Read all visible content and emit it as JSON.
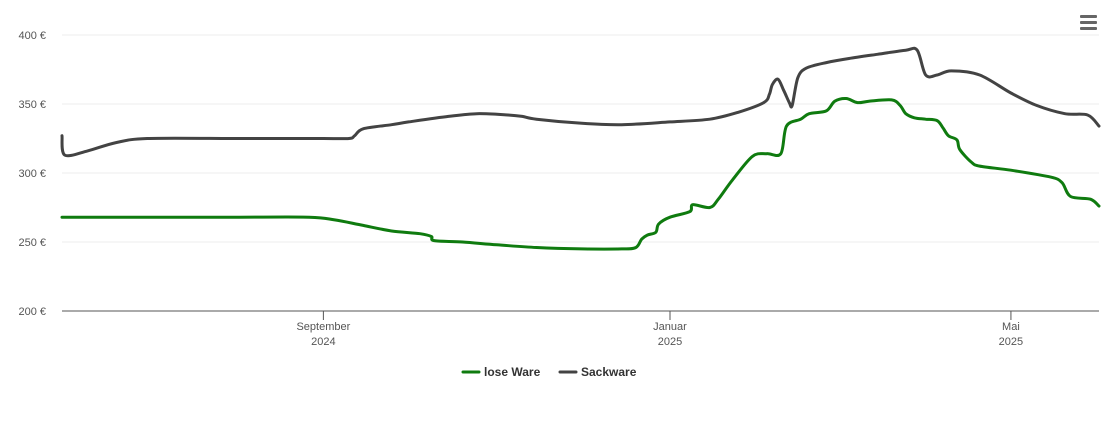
{
  "ui": {
    "menu_icon": "hamburger-menu-icon"
  },
  "chart_data": {
    "type": "line",
    "title": "",
    "xlabel": "",
    "ylabel": "",
    "ylim": [
      200,
      400
    ],
    "xlim": [
      "2024-06-01",
      "2025-06-01"
    ],
    "grid": true,
    "legend": "bottom-center",
    "y_ticks": [
      {
        "value": 200,
        "label": "200 €"
      },
      {
        "value": 250,
        "label": "250 €"
      },
      {
        "value": 300,
        "label": "300 €"
      },
      {
        "value": 350,
        "label": "350 €"
      },
      {
        "value": 400,
        "label": "400 €"
      }
    ],
    "x_ticks": [
      {
        "date": "2024-09-01",
        "label": "September",
        "sublabel": "2024"
      },
      {
        "date": "2025-01-01",
        "label": "Januar",
        "sublabel": "2025"
      },
      {
        "date": "2025-05-01",
        "label": "Mai",
        "sublabel": "2025"
      }
    ],
    "series": [
      {
        "name": "lose Ware",
        "color": "#0f7b0f",
        "points": [
          [
            "2024-06-01",
            268
          ],
          [
            "2024-07-01",
            268
          ],
          [
            "2024-08-01",
            268
          ],
          [
            "2024-08-27",
            268
          ],
          [
            "2024-09-05",
            266
          ],
          [
            "2024-09-15",
            262
          ],
          [
            "2024-09-25",
            258
          ],
          [
            "2024-10-05",
            256
          ],
          [
            "2024-10-09",
            254
          ],
          [
            "2024-10-10",
            251
          ],
          [
            "2024-10-20",
            250
          ],
          [
            "2024-11-01",
            248
          ],
          [
            "2024-11-15",
            246
          ],
          [
            "2024-12-01",
            245
          ],
          [
            "2024-12-15",
            245
          ],
          [
            "2024-12-20",
            246
          ],
          [
            "2024-12-22",
            252
          ],
          [
            "2024-12-24",
            255
          ],
          [
            "2024-12-27",
            257
          ],
          [
            "2024-12-28",
            263
          ],
          [
            "2025-01-01",
            268
          ],
          [
            "2025-01-08",
            272
          ],
          [
            "2025-01-09",
            277
          ],
          [
            "2025-01-15",
            275
          ],
          [
            "2025-01-18",
            281
          ],
          [
            "2025-01-23",
            295
          ],
          [
            "2025-01-30",
            312
          ],
          [
            "2025-02-04",
            314
          ],
          [
            "2025-02-09",
            314
          ],
          [
            "2025-02-11",
            334
          ],
          [
            "2025-02-16",
            339
          ],
          [
            "2025-02-19",
            343
          ],
          [
            "2025-02-25",
            345
          ],
          [
            "2025-02-28",
            352
          ],
          [
            "2025-03-04",
            354
          ],
          [
            "2025-03-08",
            351
          ],
          [
            "2025-03-12",
            352
          ],
          [
            "2025-03-20",
            353
          ],
          [
            "2025-03-23",
            349
          ],
          [
            "2025-03-25",
            343
          ],
          [
            "2025-03-28",
            340
          ],
          [
            "2025-04-01",
            339
          ],
          [
            "2025-04-05",
            338
          ],
          [
            "2025-04-07",
            333
          ],
          [
            "2025-04-09",
            327
          ],
          [
            "2025-04-12",
            324
          ],
          [
            "2025-04-13",
            317
          ],
          [
            "2025-04-17",
            308
          ],
          [
            "2025-04-20",
            305
          ],
          [
            "2025-05-01",
            302
          ],
          [
            "2025-05-15",
            297
          ],
          [
            "2025-05-19",
            293
          ],
          [
            "2025-05-22",
            283
          ],
          [
            "2025-05-29",
            281
          ],
          [
            "2025-06-01",
            276
          ]
        ]
      },
      {
        "name": "Sackware",
        "color": "#434343",
        "points": [
          [
            "2024-06-01",
            327
          ],
          [
            "2024-06-02",
            313
          ],
          [
            "2024-06-10",
            316
          ],
          [
            "2024-06-20",
            322
          ],
          [
            "2024-07-01",
            325
          ],
          [
            "2024-08-01",
            325
          ],
          [
            "2024-08-20",
            325
          ],
          [
            "2024-09-01",
            325
          ],
          [
            "2024-09-10",
            325
          ],
          [
            "2024-09-12",
            327
          ],
          [
            "2024-09-15",
            332
          ],
          [
            "2024-09-25",
            335
          ],
          [
            "2024-10-01",
            337
          ],
          [
            "2024-10-15",
            341
          ],
          [
            "2024-10-25",
            343
          ],
          [
            "2024-11-05",
            342
          ],
          [
            "2024-11-10",
            341
          ],
          [
            "2024-11-15",
            339
          ],
          [
            "2024-12-01",
            336
          ],
          [
            "2024-12-15",
            335
          ],
          [
            "2025-01-01",
            337
          ],
          [
            "2025-01-15",
            339
          ],
          [
            "2025-01-25",
            344
          ],
          [
            "2025-02-03",
            351
          ],
          [
            "2025-02-05",
            357
          ],
          [
            "2025-02-06",
            364
          ],
          [
            "2025-02-08",
            368
          ],
          [
            "2025-02-10",
            360
          ],
          [
            "2025-02-12",
            351
          ],
          [
            "2025-02-13",
            349
          ],
          [
            "2025-02-15",
            369
          ],
          [
            "2025-02-18",
            376
          ],
          [
            "2025-02-25",
            380
          ],
          [
            "2025-03-05",
            383
          ],
          [
            "2025-03-15",
            386
          ],
          [
            "2025-03-25",
            389
          ],
          [
            "2025-03-29",
            389
          ],
          [
            "2025-04-01",
            371
          ],
          [
            "2025-04-05",
            371
          ],
          [
            "2025-04-10",
            374
          ],
          [
            "2025-04-20",
            371
          ],
          [
            "2025-05-01",
            358
          ],
          [
            "2025-05-10",
            349
          ],
          [
            "2025-05-20",
            343
          ],
          [
            "2025-05-28",
            342
          ],
          [
            "2025-06-01",
            334
          ]
        ]
      }
    ]
  }
}
